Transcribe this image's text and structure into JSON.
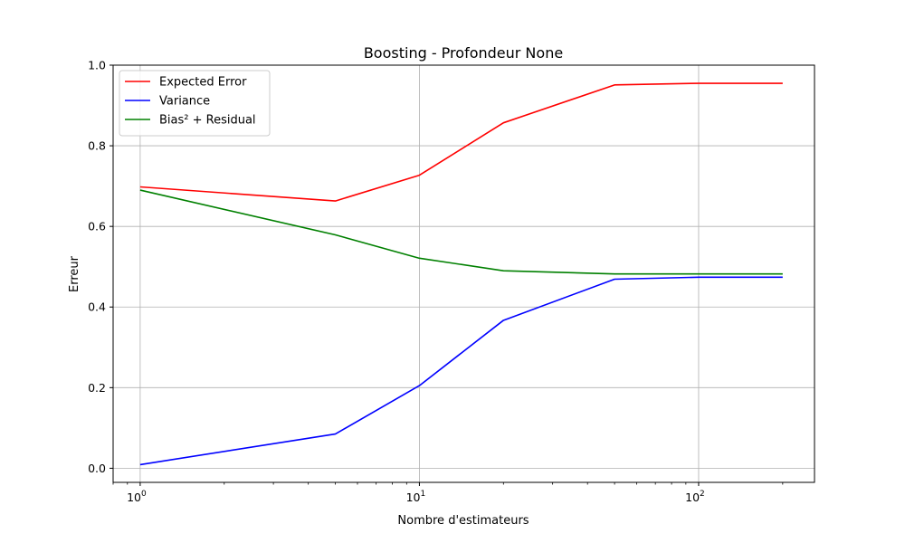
{
  "chart_data": {
    "type": "line",
    "title": "Boosting - Profondeur None",
    "xlabel": "Nombre d'estimateurs",
    "ylabel": "Erreur",
    "x_scale": "log",
    "xlim": [
      0.8,
      260
    ],
    "ylim": [
      -0.035,
      1.0
    ],
    "x_ticks": [
      {
        "value": 1,
        "base": "10",
        "exp": "0"
      },
      {
        "value": 10,
        "base": "10",
        "exp": "1"
      },
      {
        "value": 100,
        "base": "10",
        "exp": "2"
      }
    ],
    "y_ticks": [
      {
        "value": 0.0,
        "label": "0.0"
      },
      {
        "value": 0.2,
        "label": "0.2"
      },
      {
        "value": 0.4,
        "label": "0.4"
      },
      {
        "value": 0.6,
        "label": "0.6"
      },
      {
        "value": 0.8,
        "label": "0.8"
      },
      {
        "value": 1.0,
        "label": "1.0"
      }
    ],
    "grid": true,
    "legend_position": "top-left",
    "x": [
      1,
      5,
      10,
      20,
      50,
      100,
      200
    ],
    "series": [
      {
        "name": "Expected Error",
        "color": "#ff0000",
        "values": [
          0.698,
          0.663,
          0.727,
          0.857,
          0.951,
          0.955,
          0.955
        ]
      },
      {
        "name": "Variance",
        "color": "#0000ff",
        "values": [
          0.009,
          0.085,
          0.205,
          0.367,
          0.469,
          0.474,
          0.474
        ]
      },
      {
        "name": "Bias² + Residual",
        "color": "#008000",
        "values": [
          0.69,
          0.579,
          0.521,
          0.49,
          0.482,
          0.482,
          0.482
        ]
      }
    ]
  }
}
